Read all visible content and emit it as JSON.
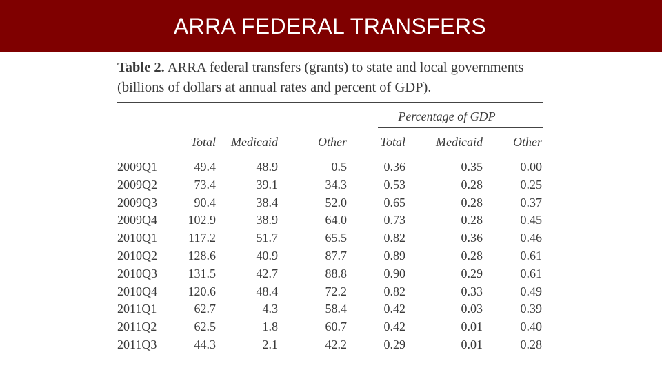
{
  "slide": {
    "title": "ARRA FEDERAL TRANSFERS"
  },
  "table": {
    "label": "Table 2.",
    "caption_line1": "ARRA federal transfers (grants) to state and local governments",
    "caption_line2": "(billions of dollars at annual rates and percent of GDP).",
    "group_header": "Percentage of GDP",
    "columns": [
      "Total",
      "Medicaid",
      "Other",
      "Total",
      "Medicaid",
      "Other"
    ],
    "rows": [
      [
        "2009Q1",
        "49.4",
        "48.9",
        "0.5",
        "0.36",
        "0.35",
        "0.00"
      ],
      [
        "2009Q2",
        "73.4",
        "39.1",
        "34.3",
        "0.53",
        "0.28",
        "0.25"
      ],
      [
        "2009Q3",
        "90.4",
        "38.4",
        "52.0",
        "0.65",
        "0.28",
        "0.37"
      ],
      [
        "2009Q4",
        "102.9",
        "38.9",
        "64.0",
        "0.73",
        "0.28",
        "0.45"
      ],
      [
        "2010Q1",
        "117.2",
        "51.7",
        "65.5",
        "0.82",
        "0.36",
        "0.46"
      ],
      [
        "2010Q2",
        "128.6",
        "40.9",
        "87.7",
        "0.89",
        "0.28",
        "0.61"
      ],
      [
        "2010Q3",
        "131.5",
        "42.7",
        "88.8",
        "0.90",
        "0.29",
        "0.61"
      ],
      [
        "2010Q4",
        "120.6",
        "48.4",
        "72.2",
        "0.82",
        "0.33",
        "0.49"
      ],
      [
        "2011Q1",
        "62.7",
        "4.3",
        "58.4",
        "0.42",
        "0.03",
        "0.39"
      ],
      [
        "2011Q2",
        "62.5",
        "1.8",
        "60.7",
        "0.42",
        "0.01",
        "0.40"
      ],
      [
        "2011Q3",
        "44.3",
        "2.1",
        "42.2",
        "0.29",
        "0.01",
        "0.28"
      ]
    ]
  }
}
